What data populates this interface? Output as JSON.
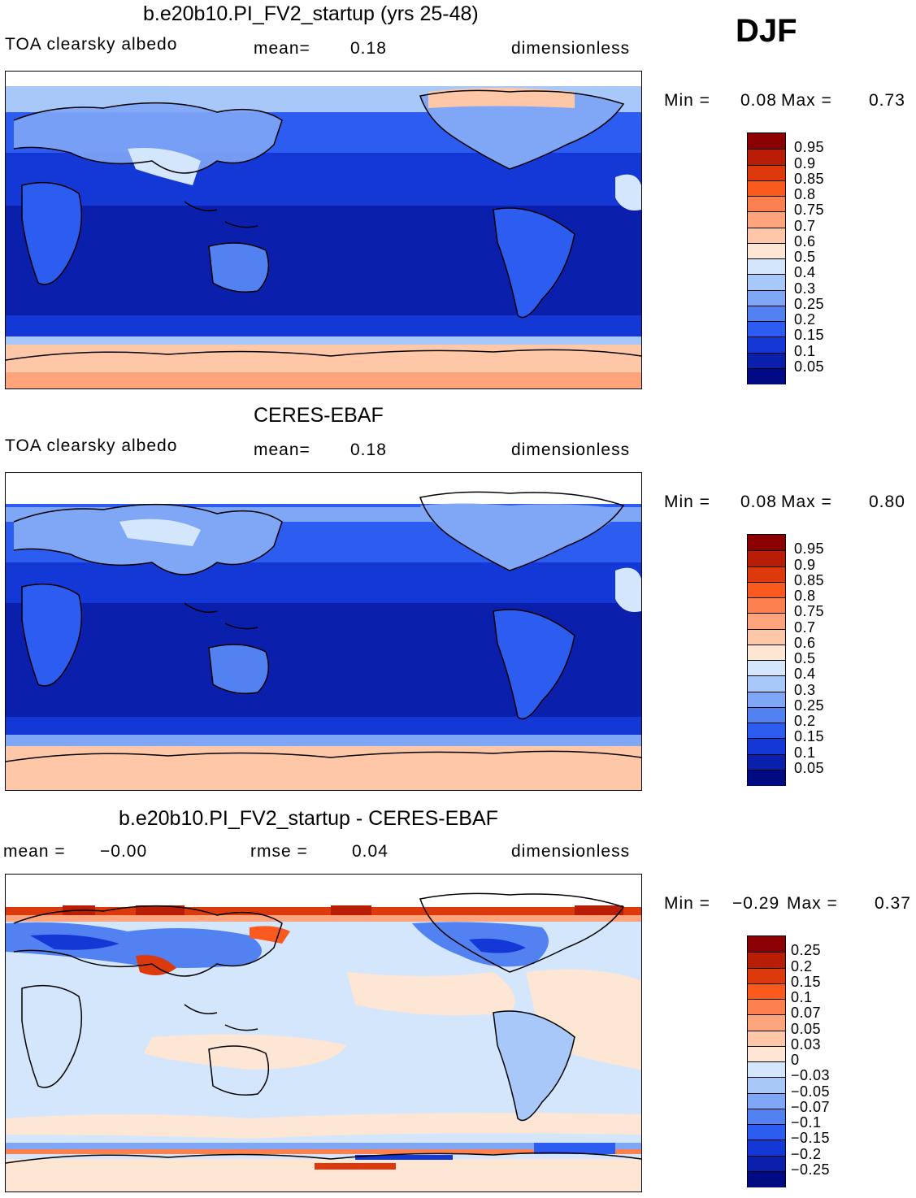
{
  "season": "DJF",
  "panels": [
    {
      "id": "model",
      "title": "b.e20b10.PI_FV2_startup (yrs 25-48)",
      "left_label": "TOA  clearsky  albedo",
      "stat1_label": "mean=",
      "stat1_value": "0.18",
      "stat2_label": "",
      "stat2_value": "",
      "units": "dimensionless",
      "min_label": "Min  =",
      "min_value": "0.08",
      "max_label": "Max  =",
      "max_value": "0.73",
      "colorbar": {
        "levels": [
          "0.95",
          "0.9",
          "0.85",
          "0.8",
          "0.75",
          "0.7",
          "0.6",
          "0.5",
          "0.4",
          "0.3",
          "0.25",
          "0.2",
          "0.15",
          "0.1",
          "0.05"
        ],
        "colors": [
          "#8b0000",
          "#b81e06",
          "#dc3a0c",
          "#fa5a1e",
          "#fd8050",
          "#fea47c",
          "#fec8a8",
          "#fde6d4",
          "#d4e6fb",
          "#a8c8fa",
          "#80a6f6",
          "#5282f2",
          "#2c5cf0",
          "#1438d6",
          "#0a1fac",
          "#000a82"
        ]
      }
    },
    {
      "id": "obs",
      "title": "CERES-EBAF",
      "left_label": "TOA  clearsky  albedo",
      "stat1_label": "mean=",
      "stat1_value": "0.18",
      "stat2_label": "",
      "stat2_value": "",
      "units": "dimensionless",
      "min_label": "Min  =",
      "min_value": "0.08",
      "max_label": "Max  =",
      "max_value": "0.80",
      "colorbar": {
        "levels": [
          "0.95",
          "0.9",
          "0.85",
          "0.8",
          "0.75",
          "0.7",
          "0.6",
          "0.5",
          "0.4",
          "0.3",
          "0.25",
          "0.2",
          "0.15",
          "0.1",
          "0.05"
        ],
        "colors": [
          "#8b0000",
          "#b81e06",
          "#dc3a0c",
          "#fa5a1e",
          "#fd8050",
          "#fea47c",
          "#fec8a8",
          "#fde6d4",
          "#d4e6fb",
          "#a8c8fa",
          "#80a6f6",
          "#5282f2",
          "#2c5cf0",
          "#1438d6",
          "#0a1fac",
          "#000a82"
        ]
      }
    },
    {
      "id": "diff",
      "title": "b.e20b10.PI_FV2_startup - CERES-EBAF",
      "left_label": "mean  =",
      "left_value": "−0.00",
      "stat1_label": "",
      "stat1_value": "",
      "stat2_label": "rmse  =",
      "stat2_value": "0.04",
      "units": "dimensionless",
      "min_label": "Min  =",
      "min_value": "−0.29",
      "max_label": "Max  =",
      "max_value": "0.37",
      "colorbar": {
        "levels": [
          "0.25",
          "0.2",
          "0.15",
          "0.1",
          "0.07",
          "0.05",
          "0.03",
          "0",
          "−0.03",
          "−0.05",
          "−0.07",
          "−0.1",
          "−0.15",
          "−0.2",
          "−0.25"
        ],
        "colors": [
          "#8b0000",
          "#b81e06",
          "#dc3a0c",
          "#fa5a1e",
          "#fd8050",
          "#fea47c",
          "#fec8a8",
          "#fde6d4",
          "#d4e6fb",
          "#a8c8fa",
          "#80a6f6",
          "#5282f2",
          "#2c5cf0",
          "#1438d6",
          "#0a1fac",
          "#000a82"
        ]
      }
    }
  ]
}
